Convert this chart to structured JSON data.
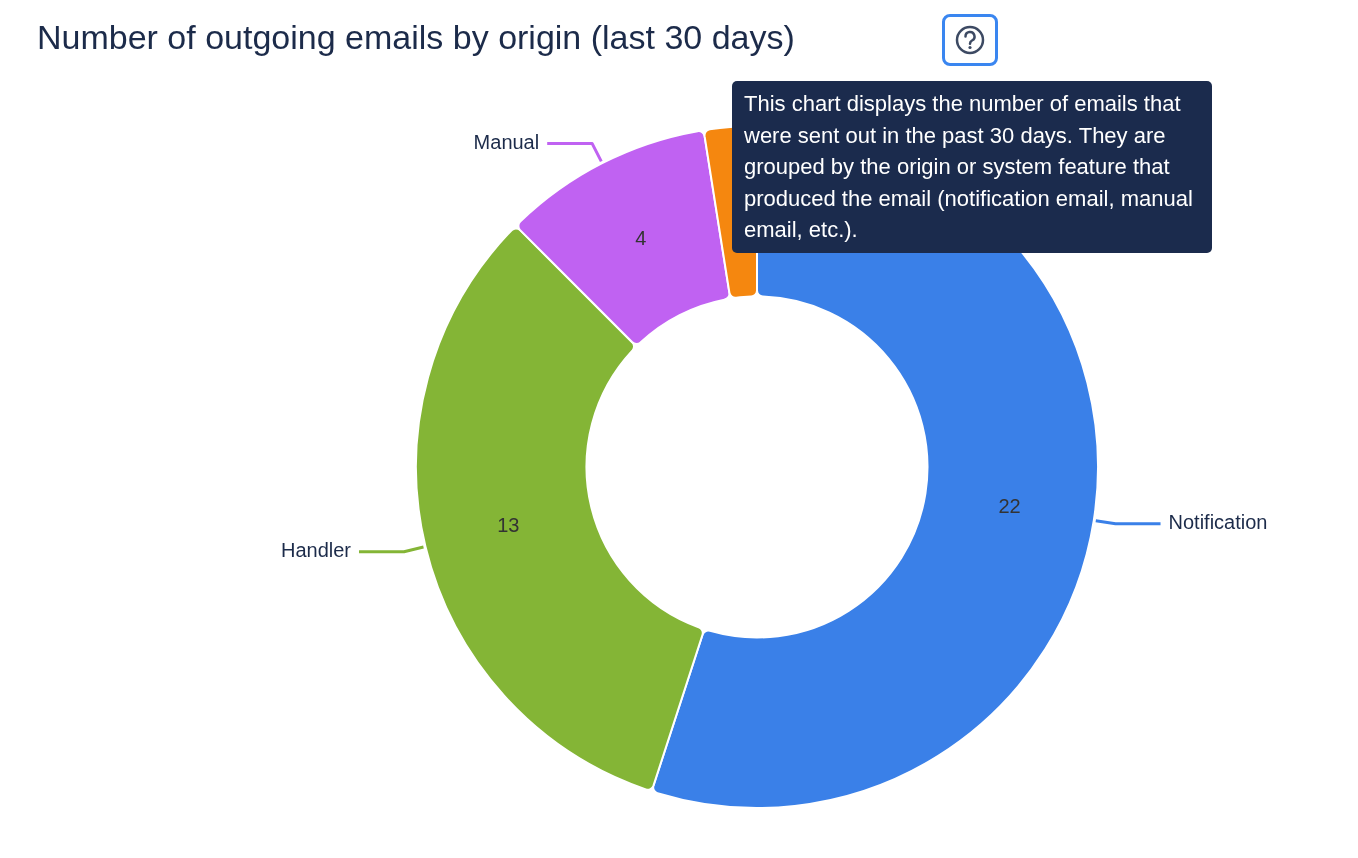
{
  "chart_data": {
    "type": "donut",
    "title": "Number of outgoing emails by origin (last 30 days)",
    "categories": [
      "Notification",
      "Handler",
      "Manual",
      null
    ],
    "values": [
      22,
      13,
      4,
      1
    ],
    "colors": [
      "#3a80e8",
      "#84b536",
      "#c062f2",
      "#f5870f"
    ],
    "value_labels": [
      "22",
      "13",
      "4",
      null
    ],
    "legend": false,
    "annotations": [
      "This chart displays the number of emails that were sent out in the past 30 days. They are grouped by the origin or system feature that produced the email (notification email, manual email, etc.)."
    ]
  }
}
